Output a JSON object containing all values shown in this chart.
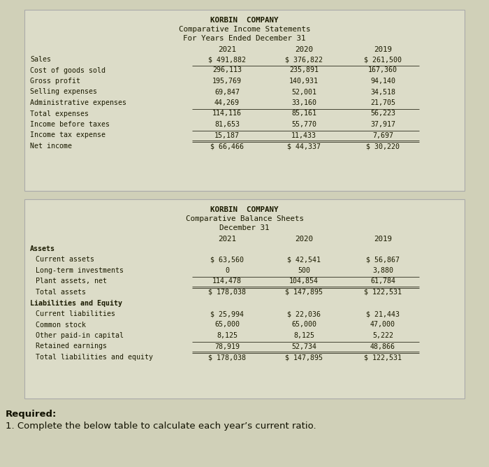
{
  "page_bg": "#d0d0b8",
  "table_bg": "#dcdcc8",
  "table_border": "#aaaaaa",
  "income_title": "KORBIN  COMPANY",
  "income_subtitle1": "Comparative Income Statements",
  "income_subtitle2": "For Years Ended December 31",
  "income_years": [
    "2021",
    "2020",
    "2019"
  ],
  "income_rows": [
    [
      "Sales",
      "$ 491,882",
      "$ 376,822",
      "$ 261,500"
    ],
    [
      "Cost of goods sold",
      "296,113",
      "235,891",
      "167,360"
    ],
    [
      "Gross profit",
      "195,769",
      "140,931",
      "94,140"
    ],
    [
      "Selling expenses",
      "69,847",
      "52,001",
      "34,518"
    ],
    [
      "Administrative expenses",
      "44,269",
      "33,160",
      "21,705"
    ],
    [
      "Total expenses",
      "114,116",
      "85,161",
      "56,223"
    ],
    [
      "Income before taxes",
      "81,653",
      "55,770",
      "37,917"
    ],
    [
      "Income tax expense",
      "15,187",
      "11,433",
      "7,697"
    ],
    [
      "Net income",
      "$ 66,466",
      "$ 44,337",
      "$ 30,220"
    ]
  ],
  "income_underline_after": [
    1,
    5,
    7
  ],
  "income_double_after": [
    8
  ],
  "balance_title": "KORBIN  COMPANY",
  "balance_subtitle1": "Comparative Balance Sheets",
  "balance_subtitle2": "December 31",
  "balance_years": [
    "2021",
    "2020",
    "2019"
  ],
  "balance_rows": [
    [
      "Assets",
      "",
      "",
      "",
      "bold"
    ],
    [
      "Current assets",
      "$ 63,560",
      "$ 42,541",
      "$ 56,867",
      "normal"
    ],
    [
      "Long-term investments",
      "0",
      "500",
      "3,880",
      "normal"
    ],
    [
      "Plant assets, net",
      "114,478",
      "104,854",
      "61,784",
      "normal"
    ],
    [
      "Total assets",
      "$ 178,038",
      "$ 147,895",
      "$ 122,531",
      "normal"
    ],
    [
      "Liabilities and Equity",
      "",
      "",
      "",
      "bold"
    ],
    [
      "Current liabilities",
      "$ 25,994",
      "$ 22,036",
      "$ 21,443",
      "normal"
    ],
    [
      "Common stock",
      "65,000",
      "65,000",
      "47,000",
      "normal"
    ],
    [
      "Other paid-in capital",
      "8,125",
      "8,125",
      "5,222",
      "normal"
    ],
    [
      "Retained earnings",
      "78,919",
      "52,734",
      "48,866",
      "normal"
    ],
    [
      "Total liabilities and equity",
      "$ 178,038",
      "$ 147,895",
      "$ 122,531",
      "normal"
    ]
  ],
  "balance_underline_after": [
    3,
    9
  ],
  "balance_double_after": [
    4,
    10
  ],
  "required_label": "Required:",
  "required_body": "1. Complete the below table to calculate each year’s current ratio.",
  "mono": "monospace",
  "fs_title": 7.8,
  "fs_body": 7.2,
  "fs_req": 9.5
}
